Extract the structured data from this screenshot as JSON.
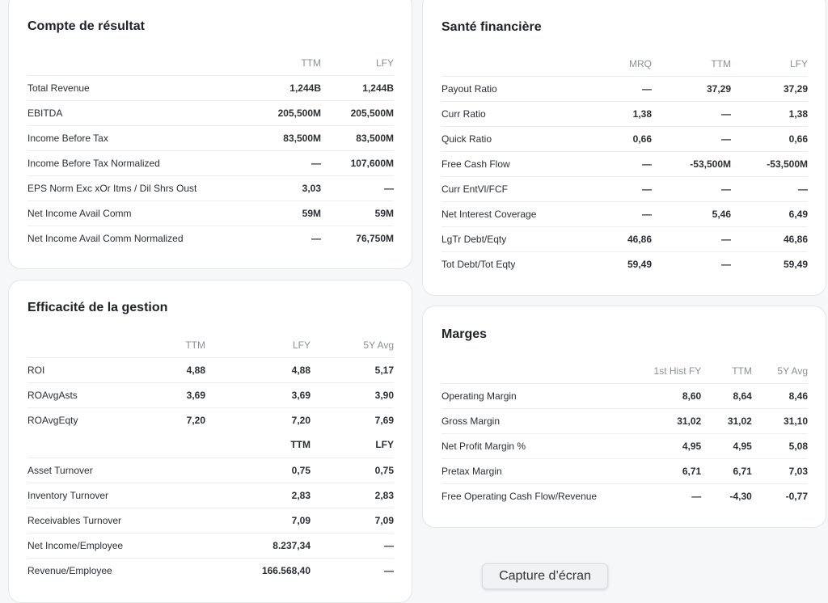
{
  "income": {
    "title": "Compte de résultat",
    "columns": [
      "TTM",
      "LFY"
    ],
    "rows": [
      {
        "label": "Total Revenue",
        "ttm": "1,244B",
        "lfy": "1,244B"
      },
      {
        "label": "EBITDA",
        "ttm": "205,500M",
        "lfy": "205,500M"
      },
      {
        "label": "Income Before Tax",
        "ttm": "83,500M",
        "lfy": "83,500M"
      },
      {
        "label": "Income Before Tax Normalized",
        "ttm": "—",
        "lfy": "107,600M"
      },
      {
        "label": "EPS Norm Exc xOr Itms / Dil Shrs Oust",
        "ttm": "3,03",
        "lfy": "—"
      },
      {
        "label": "Net Income Avail Comm",
        "ttm": "59M",
        "lfy": "59M"
      },
      {
        "label": "Net Income Avail Comm Normalized",
        "ttm": "—",
        "lfy": "76,750M"
      }
    ]
  },
  "health": {
    "title": "Santé financière",
    "columns": [
      "MRQ",
      "TTM",
      "LFY"
    ],
    "rows": [
      {
        "label": "Payout Ratio",
        "mrq": "—",
        "ttm": "37,29",
        "lfy": "37,29"
      },
      {
        "label": "Curr Ratio",
        "mrq": "1,38",
        "ttm": "—",
        "lfy": "1,38"
      },
      {
        "label": "Quick Ratio",
        "mrq": "0,66",
        "ttm": "—",
        "lfy": "0,66"
      },
      {
        "label": "Free Cash Flow",
        "mrq": "—",
        "ttm": "-53,500M",
        "lfy": "-53,500M"
      },
      {
        "label": "Curr EntVl/FCF",
        "mrq": "—",
        "ttm": "—",
        "lfy": "—"
      },
      {
        "label": "Net Interest Coverage",
        "mrq": "—",
        "ttm": "5,46",
        "lfy": "6,49"
      },
      {
        "label": "LgTr Debt/Eqty",
        "mrq": "46,86",
        "ttm": "—",
        "lfy": "46,86"
      },
      {
        "label": "Tot Debt/Tot Eqty",
        "mrq": "59,49",
        "ttm": "—",
        "lfy": "59,49"
      }
    ]
  },
  "efficiency": {
    "title": "Efficacité de la gestion",
    "columns": [
      "TTM",
      "LFY",
      "5Y Avg"
    ],
    "rows": [
      {
        "label": "ROI",
        "ttm": "4,88",
        "lfy": "4,88",
        "avg": "5,17"
      },
      {
        "label": "ROAvgAsts",
        "ttm": "3,69",
        "lfy": "3,69",
        "avg": "3,90"
      },
      {
        "label": "ROAvgEqty",
        "ttm": "7,20",
        "lfy": "7,20",
        "avg": "7,69"
      }
    ],
    "sub_columns": [
      "TTM",
      "LFY"
    ],
    "sub_rows": [
      {
        "label": "Asset Turnover",
        "ttm": "0,75",
        "lfy": "0,75"
      },
      {
        "label": "Inventory Turnover",
        "ttm": "2,83",
        "lfy": "2,83"
      },
      {
        "label": "Receivables Turnover",
        "ttm": "7,09",
        "lfy": "7,09"
      },
      {
        "label": "Net Income/Employee",
        "ttm": "8.237,34",
        "lfy": "—"
      },
      {
        "label": "Revenue/Employee",
        "ttm": "166.568,40",
        "lfy": "—"
      }
    ]
  },
  "margins": {
    "title": "Marges",
    "columns": [
      "1st Hist FY",
      "TTM",
      "5Y Avg"
    ],
    "rows": [
      {
        "label": "Operating Margin",
        "first": "8,60",
        "ttm": "8,64",
        "avg": "8,46"
      },
      {
        "label": "Gross Margin",
        "first": "31,02",
        "ttm": "31,02",
        "avg": "31,10"
      },
      {
        "label": "Net Profit Margin %",
        "first": "4,95",
        "ttm": "4,95",
        "avg": "5,08"
      },
      {
        "label": "Pretax Margin",
        "first": "6,71",
        "ttm": "6,71",
        "avg": "7,03"
      },
      {
        "label": "Free Operating Cash Flow/Revenue",
        "first": "—",
        "ttm": "-4,30",
        "avg": "-0,77"
      }
    ]
  },
  "capture_button": "Capture d’écran"
}
